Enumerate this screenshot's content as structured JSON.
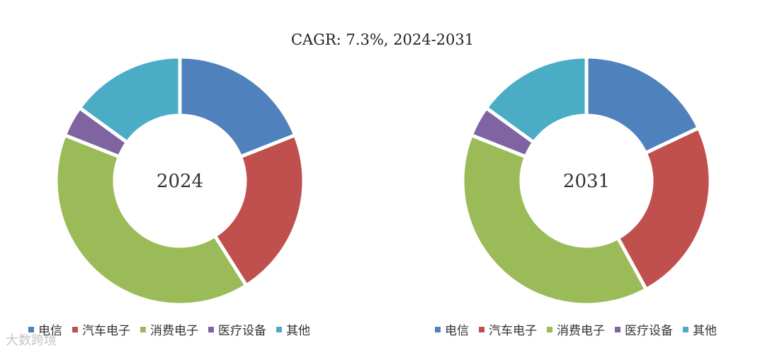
{
  "subtitle": "CAGR:   7.3%, 2024-2031",
  "watermark": "大数跨境",
  "colors": [
    "#4f81bd",
    "#c0504d",
    "#9bbb59",
    "#8064a2",
    "#4bacc6"
  ],
  "chart_data": [
    {
      "type": "pie",
      "center_label": "2024",
      "categories": [
        "电信",
        "汽车电子",
        "消费电子",
        "医疗设备",
        "其他"
      ],
      "values": [
        19,
        22,
        40,
        4,
        15
      ]
    },
    {
      "type": "pie",
      "center_label": "2031",
      "categories": [
        "电信",
        "汽车电子",
        "消费电子",
        "医疗设备",
        "其他"
      ],
      "values": [
        18,
        24,
        39,
        4,
        15
      ]
    }
  ]
}
